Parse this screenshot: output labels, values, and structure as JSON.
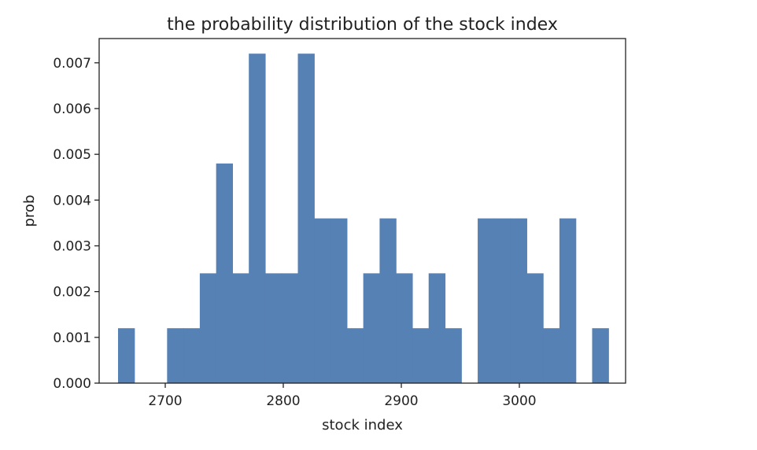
{
  "chart_data": {
    "type": "bar",
    "title": "the probability distribution of the stock index",
    "xlabel": "stock index",
    "ylabel": "prob",
    "xlim": [
      2644,
      2689.6
    ],
    "xlim_note": "",
    "x_range": [
      2644,
      3090
    ],
    "ylim": [
      0,
      0.00753
    ],
    "xticks": [
      2700,
      2800,
      2900,
      3000
    ],
    "yticks": [
      0.0,
      0.001,
      0.002,
      0.003,
      0.004,
      0.005,
      0.006,
      0.007
    ],
    "ytick_labels": [
      "0.000",
      "0.001",
      "0.002",
      "0.003",
      "0.004",
      "0.005",
      "0.006",
      "0.007"
    ],
    "bin_edges": [
      2660.0,
      2673.85,
      2687.7,
      2701.55,
      2715.4,
      2729.25,
      2743.1,
      2756.95,
      2770.8,
      2784.65,
      2798.5,
      2812.35,
      2826.2,
      2840.05,
      2853.9,
      2867.75,
      2881.6,
      2895.45,
      2909.3,
      2923.15,
      2937.0,
      2950.85,
      2964.7,
      2978.55,
      2992.4,
      3006.25,
      3020.1,
      3033.95,
      3047.8,
      3061.65,
      3075.5
    ],
    "values": [
      0.0012,
      0,
      0,
      0.0012,
      0.0012,
      0.0024,
      0.0048,
      0.0024,
      0.0072,
      0.0024,
      0.0024,
      0.0072,
      0.0036,
      0.0036,
      0.0012,
      0.0024,
      0.0036,
      0.0024,
      0.0012,
      0.0024,
      0.0012,
      0,
      0.0036,
      0.0036,
      0.0036,
      0.0024,
      0.0012,
      0.0036,
      0,
      0.0012
    ],
    "bar_color": "#5681b4",
    "grid": false,
    "legend": "none"
  }
}
